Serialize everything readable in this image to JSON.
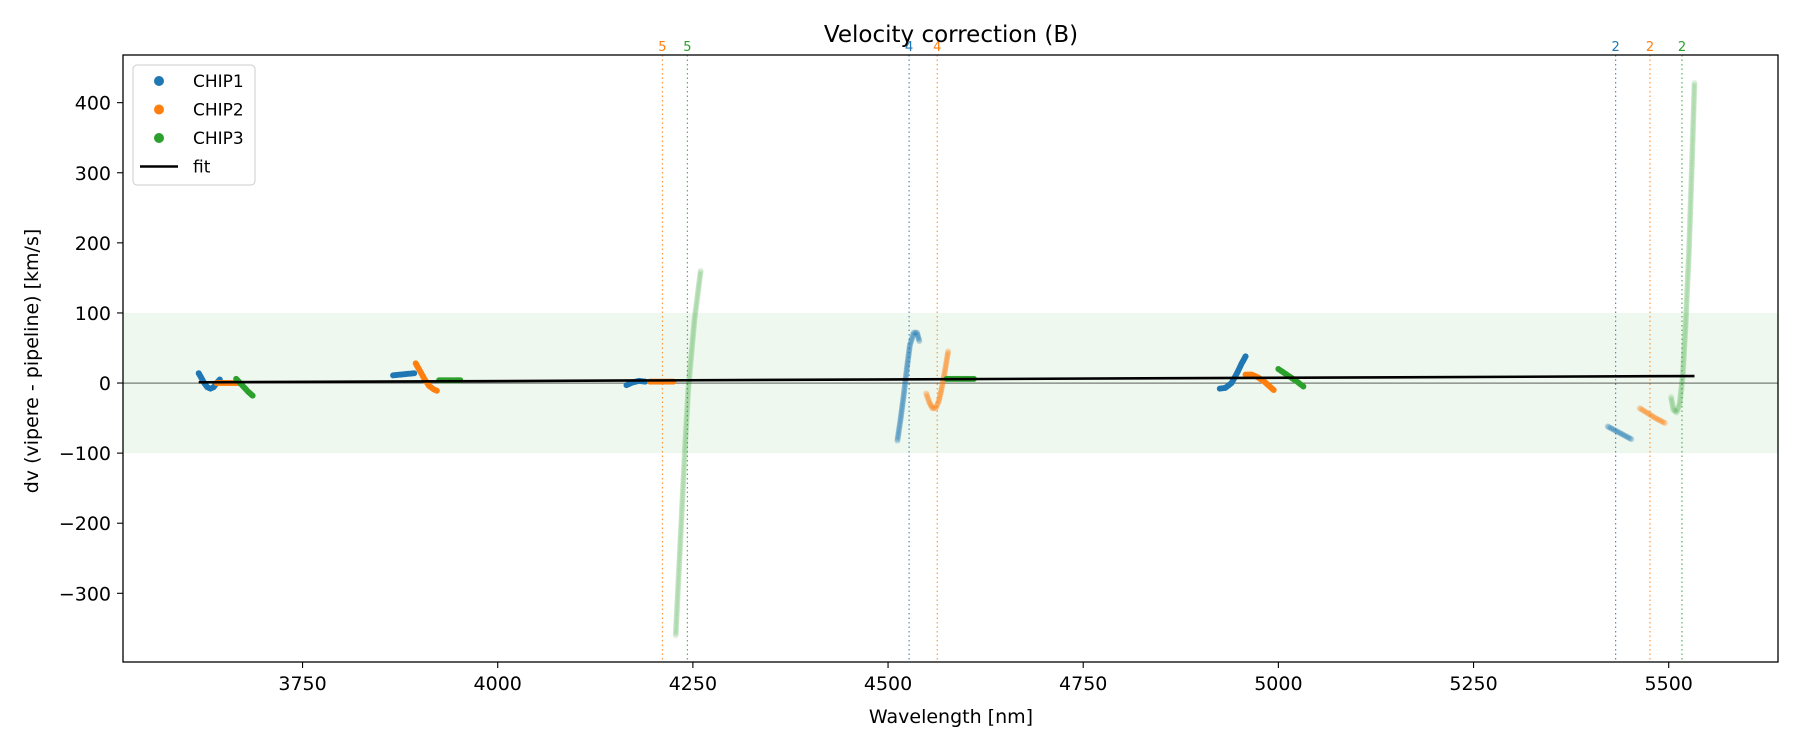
{
  "chart_data": {
    "type": "scatter",
    "title": "Velocity correction (B)",
    "xlabel": "Wavelength [nm]",
    "ylabel": "dv (vipere - pipeline) [km/s]",
    "xlim": [
      3520,
      5640
    ],
    "ylim": [
      -398,
      468
    ],
    "xticks": [
      3750,
      4000,
      4250,
      4500,
      4750,
      5000,
      5250,
      5500
    ],
    "yticks": [
      -300,
      -200,
      -100,
      0,
      100,
      200,
      300,
      400
    ],
    "band": {
      "y0": -100,
      "y1": 100,
      "color": "#2ca02c"
    },
    "zero_line": 0,
    "colors": {
      "CHIP1": "#1f77b4",
      "CHIP2": "#ff7f0e",
      "CHIP3": "#2ca02c",
      "fit": "#000000"
    },
    "legend": {
      "position": "top-left",
      "entries": [
        {
          "label": "CHIP1",
          "kind": "marker",
          "color": "#1f77b4"
        },
        {
          "label": "CHIP2",
          "kind": "marker",
          "color": "#ff7f0e"
        },
        {
          "label": "CHIP3",
          "kind": "marker",
          "color": "#2ca02c"
        },
        {
          "label": "fit",
          "kind": "line",
          "color": "#000000"
        }
      ]
    },
    "fit": {
      "x": [
        3617,
        5533
      ],
      "y": [
        1,
        10
      ]
    },
    "vlines": [
      {
        "x": 4211,
        "label": "5",
        "color": "#ff7f0e"
      },
      {
        "x": 4243,
        "label": "5",
        "color": "#2ca02c"
      },
      {
        "x": 4527,
        "label": "4",
        "color": "#1f77b4"
      },
      {
        "x": 4563,
        "label": "4",
        "color": "#ff7f0e"
      },
      {
        "x": 5432,
        "label": "2",
        "color": "#1f77b4"
      },
      {
        "x": 5476,
        "label": "2",
        "color": "#ff7f0e"
      },
      {
        "x": 5517,
        "label": "2",
        "color": "#2ca02c"
      }
    ],
    "series": [
      {
        "name": "CHIP1",
        "color": "#1f77b4",
        "opacity": 1.0,
        "segments": [
          {
            "x": [
              3617,
              3620,
              3624,
              3628,
              3632,
              3636,
              3640,
              3644
            ],
            "y": [
              14,
              8,
              0,
              -6,
              -8,
              -6,
              0,
              5
            ]
          },
          {
            "x": [
              3866,
              3875,
              3884,
              3893
            ],
            "y": [
              11,
              12,
              13,
              14
            ]
          },
          {
            "x": [
              4165,
              4173,
              4181,
              4189
            ],
            "y": [
              -3,
              1,
              3,
              2
            ]
          },
          {
            "x": [
              4925,
              4932,
              4940,
              4947,
              4953,
              4958
            ],
            "y": [
              -8,
              -7,
              0,
              14,
              28,
              38
            ]
          }
        ]
      },
      {
        "name": "CHIP1",
        "color": "#1f77b4",
        "opacity": 0.3,
        "segments": [
          {
            "x": [
              4512,
              4516,
              4520,
              4524,
              4528,
              4533,
              4537,
              4540
            ],
            "y": [
              -82,
              -52,
              -18,
              20,
              54,
              72,
              72,
              60
            ]
          },
          {
            "x": [
              5422,
              5432,
              5442,
              5452
            ],
            "y": [
              -62,
              -68,
              -74,
              -80
            ]
          }
        ]
      },
      {
        "name": "CHIP2",
        "color": "#ff7f0e",
        "opacity": 1.0,
        "segments": [
          {
            "x": [
              3640,
              3650,
              3660,
              3670
            ],
            "y": [
              0,
              0,
              0,
              0
            ]
          },
          {
            "x": [
              3895,
              3900,
              3906,
              3912,
              3918,
              3922
            ],
            "y": [
              28,
              18,
              6,
              -4,
              -9,
              -11
            ]
          },
          {
            "x": [
              4195,
              4205,
              4215,
              4225
            ],
            "y": [
              2,
              2,
              2,
              2
            ]
          },
          {
            "x": [
              4958,
              4966,
              4974,
              4982,
              4990,
              4994
            ],
            "y": [
              12,
              12,
              8,
              2,
              -6,
              -10
            ]
          }
        ]
      },
      {
        "name": "CHIP2",
        "color": "#ff7f0e",
        "opacity": 0.3,
        "segments": [
          {
            "x": [
              4549,
              4553,
              4557,
              4561,
              4565,
              4569,
              4573,
              4577
            ],
            "y": [
              -15,
              -28,
              -36,
              -36,
              -26,
              -6,
              18,
              45
            ]
          },
          {
            "x": [
              5463,
              5473,
              5483,
              5495
            ],
            "y": [
              -36,
              -43,
              -50,
              -57
            ]
          }
        ]
      },
      {
        "name": "CHIP3",
        "color": "#2ca02c",
        "opacity": 1.0,
        "segments": [
          {
            "x": [
              3665,
              3670,
              3675,
              3680,
              3686
            ],
            "y": [
              6,
              0,
              -6,
              -12,
              -18
            ]
          },
          {
            "x": [
              3925,
              3935,
              3945,
              3952
            ],
            "y": [
              4,
              4,
              4,
              4
            ]
          },
          {
            "x": [
              4575,
              4585,
              4595,
              4605,
              4610
            ],
            "y": [
              6,
              6,
              6,
              6,
              6
            ]
          },
          {
            "x": [
              5000,
              5008,
              5016,
              5024,
              5032
            ],
            "y": [
              20,
              14,
              8,
              2,
              -5
            ]
          }
        ]
      },
      {
        "name": "CHIP3",
        "color": "#2ca02c",
        "opacity": 0.15,
        "segments": [
          {
            "x": [
              4228,
              4232,
              4236,
              4240,
              4244,
              4248,
              4252,
              4256,
              4260
            ],
            "y": [
              -360,
              -270,
              -180,
              -90,
              -10,
              40,
              90,
              125,
              160
            ]
          },
          {
            "x": [
              5503,
              5506,
              5510,
              5514,
              5518,
              5522,
              5526,
              5530,
              5533
            ],
            "y": [
              -20,
              -38,
              -42,
              -30,
              10,
              90,
              190,
              320,
              428
            ]
          }
        ]
      }
    ]
  }
}
